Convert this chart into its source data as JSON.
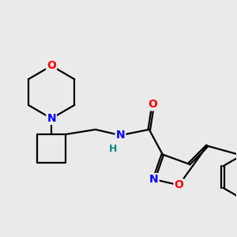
{
  "bg_color": "#eaeaea",
  "bond_color": "#000000",
  "atom_colors": {
    "O": "#ff0000",
    "N": "#0000ff",
    "H": "#008b8b",
    "C": "#000000"
  },
  "bond_width": 1.6,
  "font_size_atoms": 10,
  "font_size_H": 9
}
